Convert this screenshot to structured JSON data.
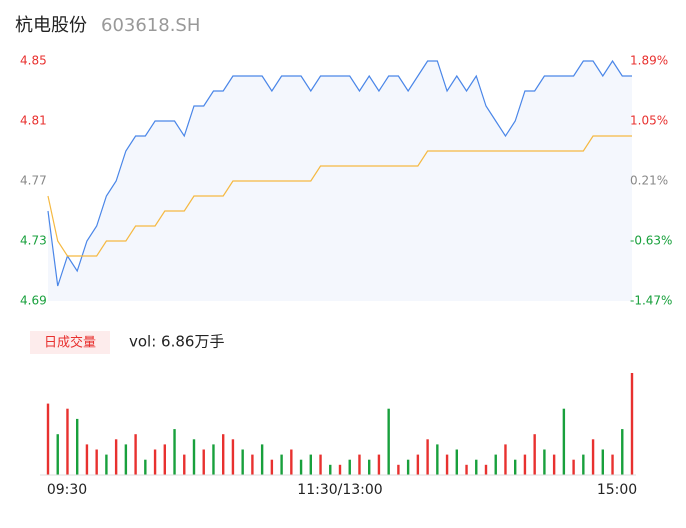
{
  "header": {
    "name": "杭电股份",
    "code": "603618.SH"
  },
  "chart_data": {
    "type": "intraday",
    "x": [
      0,
      4,
      8,
      12,
      16,
      20,
      24,
      28,
      32,
      36,
      40,
      44,
      48,
      52,
      56,
      60,
      64,
      68,
      72,
      76,
      80,
      84,
      88,
      92,
      96,
      100,
      104,
      108,
      112,
      116,
      120,
      124,
      128,
      132,
      136,
      140,
      144,
      148,
      152,
      156,
      160,
      164,
      168,
      172,
      176,
      180,
      184,
      188,
      192,
      196,
      200,
      204,
      208,
      212,
      216,
      220,
      224,
      228,
      232,
      236,
      240
    ],
    "xlim": [
      0,
      240
    ],
    "xticks": [
      {
        "value": 0,
        "label": "09:30"
      },
      {
        "value": 120,
        "label": "11:30/13:00"
      },
      {
        "value": 240,
        "label": "15:00"
      }
    ],
    "series": [
      {
        "name": "price",
        "color": "#4a86e8",
        "values": [
          4.75,
          4.7,
          4.72,
          4.71,
          4.73,
          4.74,
          4.76,
          4.77,
          4.79,
          4.8,
          4.8,
          4.81,
          4.81,
          4.81,
          4.8,
          4.82,
          4.82,
          4.83,
          4.83,
          4.84,
          4.84,
          4.84,
          4.84,
          4.83,
          4.84,
          4.84,
          4.84,
          4.83,
          4.84,
          4.84,
          4.84,
          4.84,
          4.83,
          4.84,
          4.83,
          4.84,
          4.84,
          4.83,
          4.84,
          4.85,
          4.85,
          4.83,
          4.84,
          4.83,
          4.84,
          4.82,
          4.81,
          4.8,
          4.81,
          4.83,
          4.83,
          4.84,
          4.84,
          4.84,
          4.84,
          4.85,
          4.85,
          4.84,
          4.85,
          4.84,
          4.84
        ]
      },
      {
        "name": "average",
        "color": "#f5b942",
        "values": [
          4.76,
          4.73,
          4.72,
          4.72,
          4.72,
          4.72,
          4.73,
          4.73,
          4.73,
          4.74,
          4.74,
          4.74,
          4.75,
          4.75,
          4.75,
          4.76,
          4.76,
          4.76,
          4.76,
          4.77,
          4.77,
          4.77,
          4.77,
          4.77,
          4.77,
          4.77,
          4.77,
          4.77,
          4.78,
          4.78,
          4.78,
          4.78,
          4.78,
          4.78,
          4.78,
          4.78,
          4.78,
          4.78,
          4.78,
          4.79,
          4.79,
          4.79,
          4.79,
          4.79,
          4.79,
          4.79,
          4.79,
          4.79,
          4.79,
          4.79,
          4.79,
          4.79,
          4.79,
          4.79,
          4.79,
          4.79,
          4.8,
          4.8,
          4.8,
          4.8,
          4.8
        ]
      }
    ],
    "ylim": [
      4.69,
      4.85
    ],
    "yticks": [
      4.85,
      4.81,
      4.77,
      4.73,
      4.69
    ],
    "ytick_colors": [
      "#e8312f",
      "#e8312f",
      "#888888",
      "#18a03c",
      "#18a03c"
    ],
    "y2lim": [
      -1.47,
      1.89
    ],
    "y2ticks": [
      {
        "value": 1.89,
        "label": "1.89%"
      },
      {
        "value": 1.05,
        "label": "1.05%"
      },
      {
        "value": 0.21,
        "label": "0.21%"
      },
      {
        "value": -0.63,
        "label": "-0.63%"
      },
      {
        "value": -1.47,
        "label": "-1.47%"
      }
    ],
    "fill": "#f4f7fd",
    "volume_button": "日成交量",
    "volume_text": "vol: 6.86万手",
    "volume": [
      70,
      40,
      65,
      55,
      30,
      25,
      20,
      35,
      30,
      40,
      15,
      25,
      30,
      45,
      20,
      35,
      25,
      30,
      40,
      35,
      25,
      20,
      30,
      15,
      20,
      25,
      15,
      20,
      20,
      10,
      10,
      15,
      20,
      15,
      20,
      65,
      10,
      15,
      20,
      35,
      30,
      20,
      25,
      10,
      15,
      10,
      20,
      30,
      15,
      20,
      40,
      25,
      20,
      65,
      15,
      20,
      35,
      25,
      20,
      45,
      100
    ],
    "volume_up": [
      true,
      false,
      true,
      false,
      true,
      true,
      false,
      true,
      false,
      true,
      false,
      true,
      true,
      false,
      true,
      false,
      true,
      false,
      true,
      true,
      false,
      true,
      false,
      true,
      false,
      true,
      false,
      false,
      true,
      false,
      true,
      false,
      true,
      false,
      true,
      false,
      true,
      false,
      true,
      true,
      false,
      true,
      false,
      true,
      false,
      true,
      false,
      true,
      false,
      true,
      true,
      false,
      true,
      false,
      true,
      false,
      true,
      false,
      true,
      false,
      true
    ],
    "up_color": "#e8312f",
    "down_color": "#18a03c",
    "volume_lim": [
      0,
      100
    ]
  }
}
